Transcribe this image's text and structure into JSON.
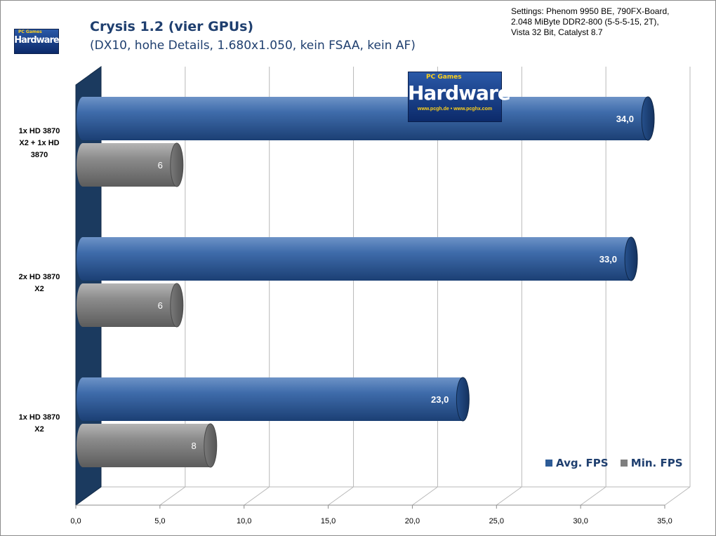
{
  "header": {
    "title": "Crysis 1.2 (vier GPUs)",
    "subtitle": "(DX10, hohe Details, 1.680x1.050, kein FSAA, kein AF)"
  },
  "settings_lines": [
    "Settings: Phenom 9950 BE, 790FX-Board,",
    "2.048 MiByte DDR2-800 (5-5-5-15,  2T),",
    "Vista 32 Bit, Catalyst 8.7"
  ],
  "logo": {
    "brand_top": "PC Games",
    "brand_word": "Hardware",
    "url": "www.pcgh.de • www.pcghx.com"
  },
  "legend": [
    {
      "label": "Avg. FPS",
      "color": "#2d5b96"
    },
    {
      "label": "Min. FPS",
      "color": "#7f7f7f"
    }
  ],
  "chart_data": {
    "type": "bar",
    "orientation": "horizontal",
    "categories": [
      "1x HD 3870 X2 + 1x HD 3870",
      "2x HD 3870 X2",
      "1x HD 3870 X2"
    ],
    "series": [
      {
        "name": "Avg. FPS",
        "values": [
          34.0,
          33.0,
          23.0
        ],
        "labels": [
          "34,0",
          "33,0",
          "23,0"
        ],
        "color": "#2d5b96"
      },
      {
        "name": "Min. FPS",
        "values": [
          6,
          6,
          8
        ],
        "labels": [
          "6",
          "6",
          "8"
        ],
        "color": "#7f7f7f"
      }
    ],
    "xlim": [
      0,
      35
    ],
    "x_ticks": [
      0,
      5,
      10,
      15,
      20,
      25,
      30,
      35
    ],
    "x_tick_labels": [
      "0,0",
      "5,0",
      "10,0",
      "15,0",
      "20,0",
      "25,0",
      "30,0",
      "35,0"
    ],
    "grid": true,
    "legend_position": "bottom-right"
  }
}
